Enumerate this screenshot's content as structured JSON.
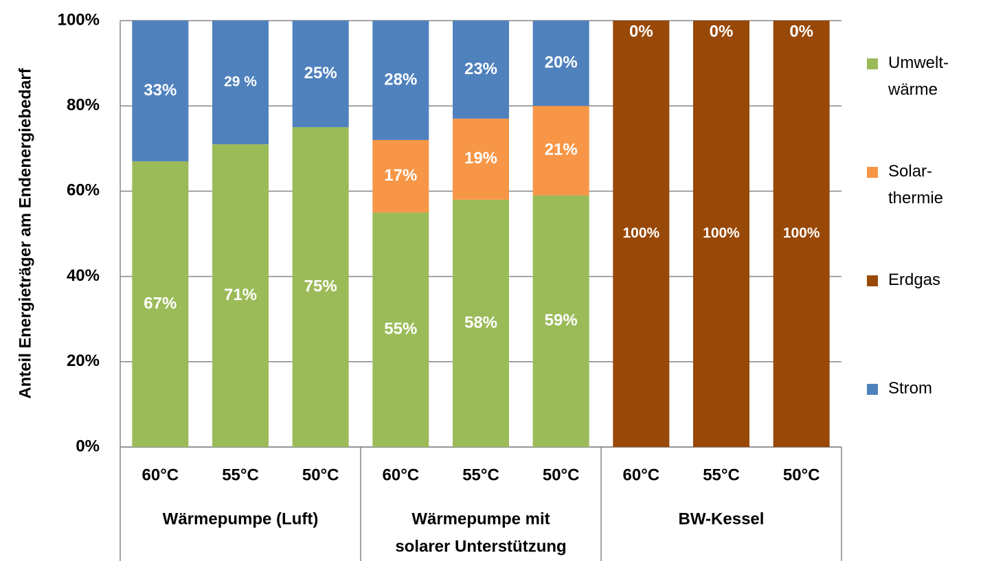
{
  "chart_data": {
    "type": "stacked_bar",
    "ylabel": "Anteil Energieträger am Endenergiebedarf",
    "categories": [
      "60°C",
      "55°C",
      "50°C",
      "60°C",
      "55°C",
      "50°C",
      "60°C",
      "55°C",
      "50°C"
    ],
    "groups": [
      {
        "label": [
          "Wärmepumpe (Luft)"
        ],
        "size": 3
      },
      {
        "label": [
          "Wärmepumpe mit",
          "solarer Unterstützung"
        ],
        "size": 3
      },
      {
        "label": [
          "BW-Kessel"
        ],
        "size": 3
      }
    ],
    "series": [
      {
        "name": "Umwelt-\nwärme",
        "color": "#9bbb59",
        "values": [
          67,
          71,
          75,
          55,
          58,
          59,
          null,
          null,
          null
        ],
        "value_labels": [
          "67%",
          "71%",
          "75%",
          "55%",
          "58%",
          "59%",
          null,
          null,
          null
        ]
      },
      {
        "name": "Solar-\nthermie",
        "color": "#f79646",
        "values": [
          null,
          null,
          null,
          17,
          19,
          21,
          null,
          null,
          null
        ],
        "value_labels": [
          null,
          null,
          null,
          "17%",
          "19%",
          "21%",
          null,
          null,
          null
        ]
      },
      {
        "name": "Erdgas",
        "color": "#984807",
        "values": [
          null,
          null,
          null,
          null,
          null,
          null,
          100,
          100,
          100
        ],
        "value_labels": [
          null,
          null,
          null,
          null,
          null,
          null,
          "100%",
          "100%",
          "100%"
        ]
      },
      {
        "name": "Strom",
        "color": "#4f81bd",
        "values": [
          33,
          29,
          25,
          28,
          23,
          20,
          0,
          0,
          0
        ],
        "value_labels": [
          "33%",
          "29 %",
          "25%",
          "28%",
          "23%",
          "20%",
          "0%",
          "0%",
          "0%"
        ]
      }
    ],
    "ylim": [
      0,
      100
    ],
    "yticks": [
      {
        "value": 0,
        "label": "0%"
      },
      {
        "value": 20,
        "label": "20%"
      },
      {
        "value": 40,
        "label": "40%"
      },
      {
        "value": 60,
        "label": "60%"
      },
      {
        "value": 80,
        "label": "80%"
      },
      {
        "value": 100,
        "label": "100%"
      }
    ],
    "grid": true
  }
}
